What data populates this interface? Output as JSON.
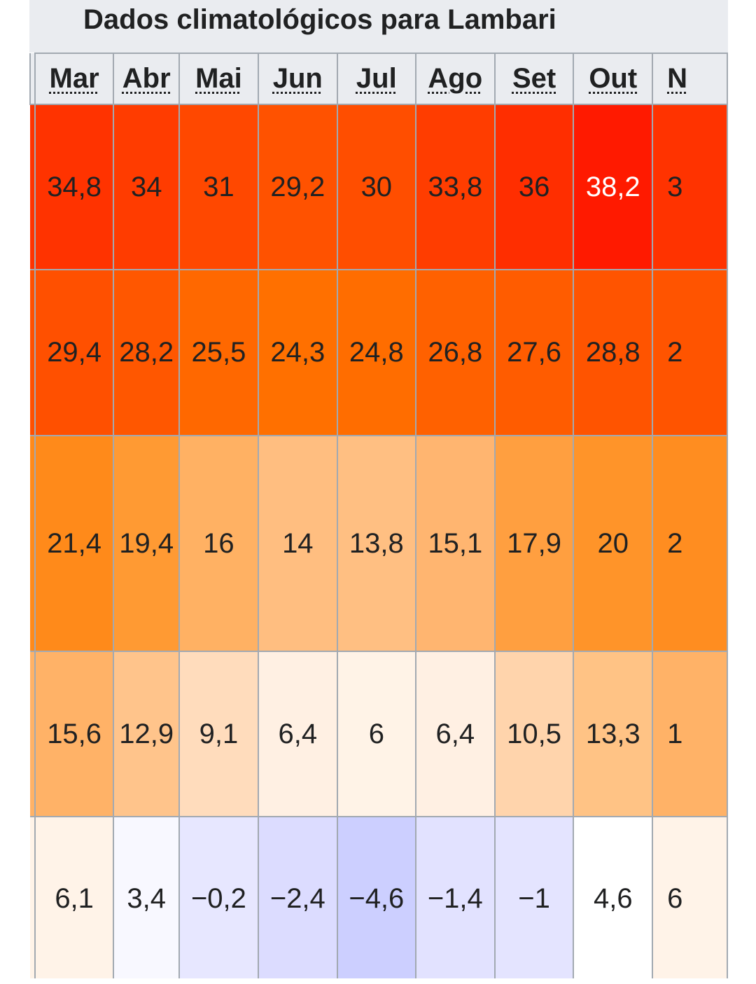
{
  "caption": "Dados climatológicos para Lambari",
  "months": [
    "Mar",
    "Abr",
    "Mai",
    "Jun",
    "Jul",
    "Ago",
    "Set",
    "Out",
    "N"
  ],
  "rows": [
    {
      "values": [
        "34,8",
        "34",
        "31",
        "29,2",
        "30",
        "33,8",
        "36",
        "38,2",
        "3"
      ],
      "bg": [
        "#ff3300",
        "#ff3c00",
        "#ff4800",
        "#ff5200",
        "#ff4e00",
        "#ff3d00",
        "#ff2e00",
        "#ff1a00",
        "#ff3300"
      ],
      "fg": [
        "#202122",
        "#202122",
        "#202122",
        "#202122",
        "#202122",
        "#202122",
        "#202122",
        "#ffffff",
        "#202122"
      ]
    },
    {
      "values": [
        "29,4",
        "28,2",
        "25,5",
        "24,3",
        "24,8",
        "26,8",
        "27,6",
        "28,8",
        "2"
      ],
      "bg": [
        "#ff5000",
        "#ff5700",
        "#ff6800",
        "#ff7000",
        "#ff6d00",
        "#ff6100",
        "#ff5c00",
        "#ff5400",
        "#ff5400"
      ],
      "fg": [
        "#202122",
        "#202122",
        "#202122",
        "#202122",
        "#202122",
        "#202122",
        "#202122",
        "#202122",
        "#202122"
      ]
    },
    {
      "values": [
        "21,4",
        "19,4",
        "16",
        "14",
        "13,8",
        "15,1",
        "17,9",
        "20",
        "2"
      ],
      "bg": [
        "#ff8a1a",
        "#ff9a33",
        "#ffb163",
        "#ffbe80",
        "#ffbf82",
        "#ffb570",
        "#ff9f40",
        "#ff9429",
        "#ff8d20"
      ],
      "fg": [
        "#202122",
        "#202122",
        "#202122",
        "#202122",
        "#202122",
        "#202122",
        "#202122",
        "#202122",
        "#202122"
      ]
    },
    {
      "values": [
        "15,6",
        "12,9",
        "9,1",
        "6,4",
        "6",
        "6,4",
        "10,5",
        "13,3",
        "1"
      ],
      "bg": [
        "#ffb267",
        "#ffc48b",
        "#ffdcbc",
        "#fff0e3",
        "#fff3e7",
        "#fff0e3",
        "#ffd4ac",
        "#ffc385",
        "#ffb267"
      ],
      "fg": [
        "#202122",
        "#202122",
        "#202122",
        "#202122",
        "#202122",
        "#202122",
        "#202122",
        "#202122",
        "#202122"
      ]
    },
    {
      "values": [
        "6,1",
        "3,4",
        "−0,2",
        "−2,4",
        "−4,6",
        "−1,4",
        "−1",
        "4,6",
        "6"
      ],
      "bg": [
        "#fff3e8",
        "#f8f8ff",
        "#e7e7ff",
        "#dcdcff",
        "#cccfff",
        "#e2e2ff",
        "#e4e4ff",
        "#ffffff",
        "#fff3e8"
      ],
      "fg": [
        "#202122",
        "#202122",
        "#202122",
        "#202122",
        "#202122",
        "#202122",
        "#202122",
        "#202122",
        "#202122"
      ]
    }
  ]
}
